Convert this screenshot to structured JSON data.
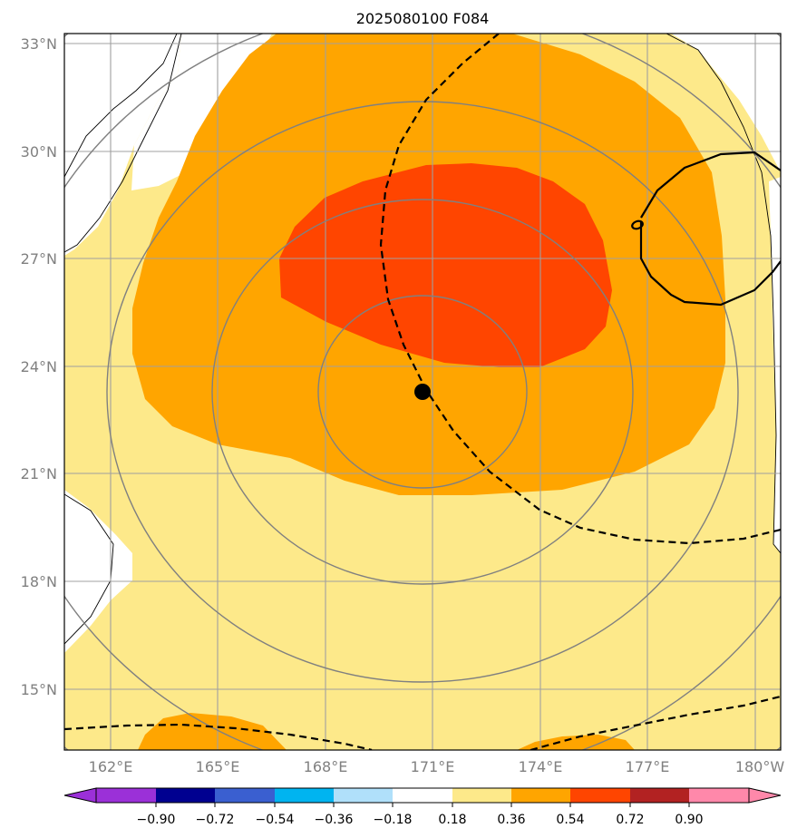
{
  "title": "2025080100 F084",
  "map": {
    "lat_labels": [
      "33°N",
      "30°N",
      "27°N",
      "24°N",
      "21°N",
      "18°N",
      "15°N"
    ],
    "lon_labels": [
      "162°E",
      "165°E",
      "168°E",
      "171°E",
      "174°E",
      "177°E",
      "180°W"
    ],
    "storm_center": {
      "lat": 23.3,
      "lon": 170.7
    },
    "fill_colors": {
      "band_018_036": "#fde98a",
      "band_036_054": "#ffa500",
      "band_054_072": "#ff4500",
      "land": "#ffffff"
    },
    "range_ring_color": "#808080",
    "grid_color": "#a0a0a0"
  },
  "colorbar": {
    "tick_labels": [
      "−0.90",
      "−0.72",
      "−0.54",
      "−0.36",
      "−0.18",
      "0.18",
      "0.36",
      "0.54",
      "0.72",
      "0.90"
    ],
    "colors": [
      "#9b30d8",
      "#000090",
      "#3a5fd0",
      "#00b4f0",
      "#b0e0fa",
      "#ffffff",
      "#fde98a",
      "#ffa500",
      "#ff4500",
      "#b22222",
      "#ff88aa"
    ]
  }
}
